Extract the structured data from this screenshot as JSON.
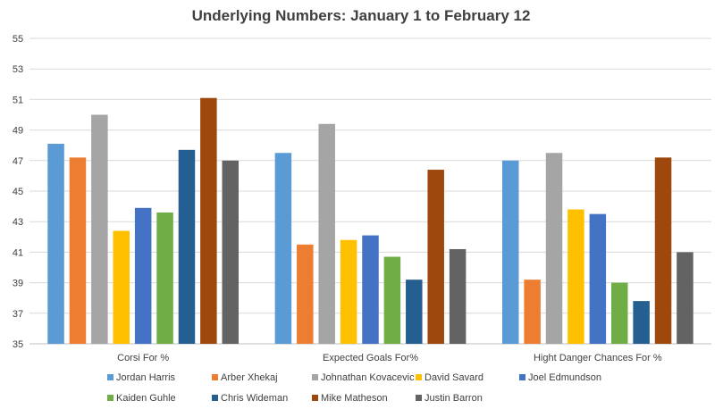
{
  "chart_data": {
    "type": "bar",
    "title": "Underlying Numbers: January 1 to February 12",
    "xlabel": "",
    "ylabel": "",
    "ylim": [
      35,
      55
    ],
    "yticks": [
      "35",
      "37",
      "39",
      "41",
      "43",
      "45",
      "47",
      "49",
      "51",
      "53",
      "55"
    ],
    "grid": true,
    "legend_position": "bottom",
    "categories": [
      "Corsi For %",
      "Expected Goals For%",
      "Hight Danger Chances For %"
    ],
    "series": [
      {
        "name": "Jordan Harris",
        "color": "#5B9BD5",
        "values": [
          48.1,
          47.5,
          47.0
        ]
      },
      {
        "name": "Arber Xhekaj",
        "color": "#ED7D31",
        "values": [
          47.2,
          41.5,
          39.2
        ]
      },
      {
        "name": "Johnathan Kovacevic",
        "color": "#A5A5A5",
        "values": [
          50.0,
          49.4,
          47.5
        ]
      },
      {
        "name": "David Savard",
        "color": "#FFC000",
        "values": [
          42.4,
          41.8,
          43.8
        ]
      },
      {
        "name": "Joel Edmundson",
        "color": "#4472C4",
        "values": [
          43.9,
          42.1,
          43.5
        ]
      },
      {
        "name": "Kaiden Guhle",
        "color": "#70AD47",
        "values": [
          43.6,
          40.7,
          39.0
        ]
      },
      {
        "name": "Chris Wideman",
        "color": "#255E91",
        "values": [
          47.7,
          39.2,
          37.8
        ]
      },
      {
        "name": "Mike Matheson",
        "color": "#9E480E",
        "values": [
          51.1,
          46.4,
          47.2
        ]
      },
      {
        "name": "Justin Barron",
        "color": "#636363",
        "values": [
          47.0,
          41.2,
          41.0
        ]
      }
    ]
  }
}
